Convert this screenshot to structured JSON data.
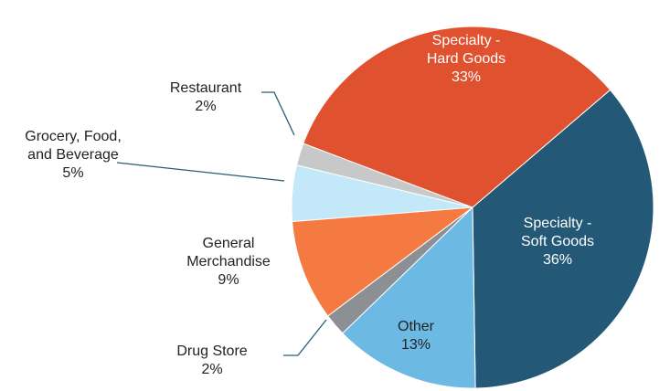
{
  "chart_data": {
    "type": "pie",
    "categories": [
      "Specialty -\nSoft Goods",
      "Other",
      "Drug Store",
      "General\nMerchandise",
      "Grocery, Food,\nand Beverage",
      "Restaurant",
      "Specialty -\nHard Goods"
    ],
    "values": [
      36,
      13,
      2,
      9,
      5,
      2,
      33
    ],
    "value_labels": [
      "36%",
      "13%",
      "2%",
      "9%",
      "5%",
      "2%",
      "33%"
    ],
    "colors": [
      "#235876",
      "#6cb9e4",
      "#8c8f93",
      "#f47a42",
      "#c3e8f7",
      "#c8c8c8",
      "#e0512f"
    ]
  }
}
